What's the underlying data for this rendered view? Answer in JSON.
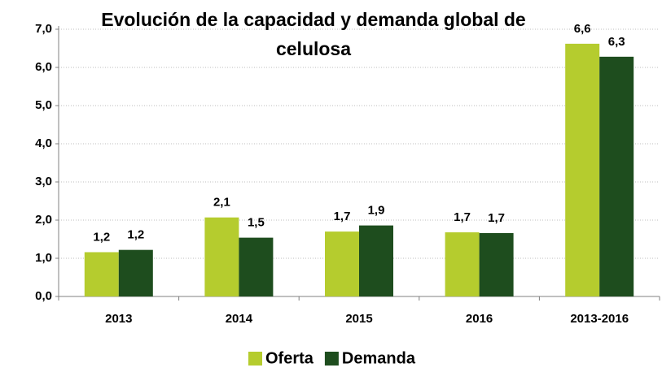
{
  "chart_data": {
    "type": "bar",
    "title": "Evolución de la capacidad y demanda global de celulosa",
    "categories": [
      "2013",
      "2014",
      "2015",
      "2016",
      "2013-2016"
    ],
    "series": [
      {
        "name": "Oferta",
        "color": "#b5cc2e",
        "values": [
          1.16,
          2.07,
          1.7,
          1.68,
          6.62
        ],
        "value_labels": [
          "1,2",
          "2,1",
          "1,7",
          "1,7",
          "6,6"
        ]
      },
      {
        "name": "Demanda",
        "color": "#1e4d1e",
        "values": [
          1.22,
          1.54,
          1.86,
          1.66,
          6.28
        ],
        "value_labels": [
          "1,2",
          "1,5",
          "1,9",
          "1,7",
          "6,3"
        ]
      }
    ],
    "ylim": [
      0,
      7
    ],
    "yticks": [
      {
        "value": 0,
        "label": "0,0"
      },
      {
        "value": 1,
        "label": "1,0"
      },
      {
        "value": 2,
        "label": "2,0"
      },
      {
        "value": 3,
        "label": "3,0"
      },
      {
        "value": 4,
        "label": "4,0"
      },
      {
        "value": 5,
        "label": "5,0"
      },
      {
        "value": 6,
        "label": "6,0"
      },
      {
        "value": 7,
        "label": "7,0"
      }
    ],
    "grid": true,
    "legend": "bottom"
  }
}
